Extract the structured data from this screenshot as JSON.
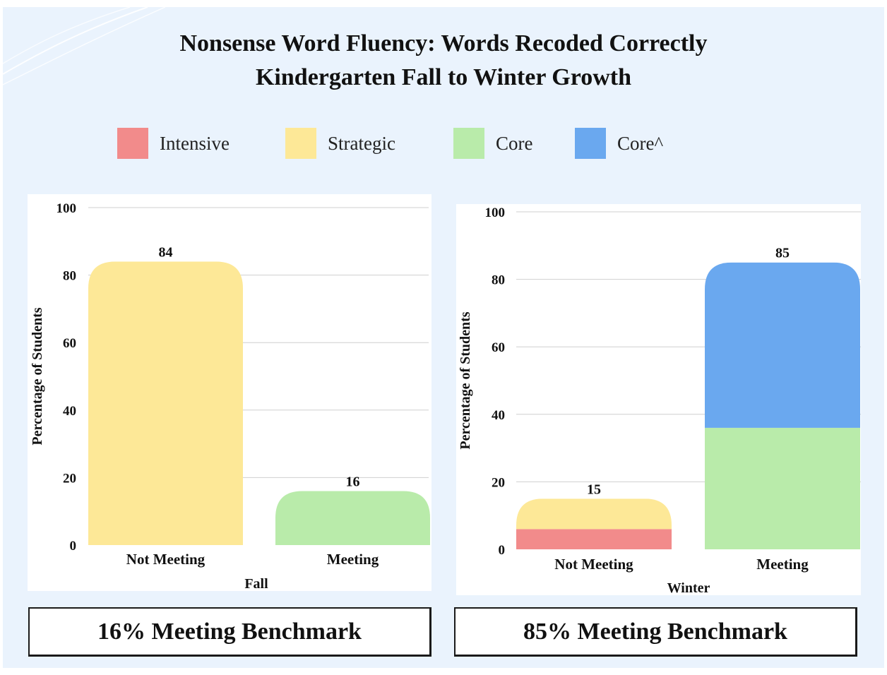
{
  "title_line1": "Nonsense Word Fluency: Words Recoded Correctly",
  "title_line2": "Kindergarten Fall to Winter Growth",
  "legend": [
    {
      "label": "Intensive",
      "color": "#f28b8b"
    },
    {
      "label": "Strategic",
      "color": "#fde897"
    },
    {
      "label": "Core",
      "color": "#b9ebaa"
    },
    {
      "label": "Core^",
      "color": "#6aa8ef"
    }
  ],
  "chart_data": [
    {
      "type": "bar",
      "stacked": true,
      "categories": [
        "Not Meeting",
        "Meeting"
      ],
      "series": [
        {
          "name": "Intensive",
          "color": "#f28b8b",
          "values": [
            0,
            0
          ]
        },
        {
          "name": "Strategic",
          "color": "#fde897",
          "values": [
            84,
            0
          ]
        },
        {
          "name": "Core",
          "color": "#b9ebaa",
          "values": [
            0,
            16
          ]
        },
        {
          "name": "Core^",
          "color": "#6aa8ef",
          "values": [
            0,
            0
          ]
        }
      ],
      "totals": [
        84,
        16
      ],
      "xlabel": "Fall",
      "ylabel": "Percentage of Students",
      "ylim": [
        0,
        100
      ],
      "yticks": [
        0,
        20,
        40,
        60,
        80,
        100
      ],
      "grid": true
    },
    {
      "type": "bar",
      "stacked": true,
      "categories": [
        "Not Meeting",
        "Meeting"
      ],
      "series": [
        {
          "name": "Intensive",
          "color": "#f28b8b",
          "values": [
            6,
            0
          ]
        },
        {
          "name": "Strategic",
          "color": "#fde897",
          "values": [
            9,
            0
          ]
        },
        {
          "name": "Core",
          "color": "#b9ebaa",
          "values": [
            0,
            36
          ]
        },
        {
          "name": "Core^",
          "color": "#6aa8ef",
          "values": [
            0,
            49
          ]
        }
      ],
      "totals": [
        15,
        85
      ],
      "xlabel": "Winter",
      "ylabel": "Percentage of Students",
      "ylim": [
        0,
        100
      ],
      "yticks": [
        0,
        20,
        40,
        60,
        80,
        100
      ],
      "grid": true
    }
  ],
  "benchmarks": [
    {
      "text": "16% Meeting Benchmark"
    },
    {
      "text": "85% Meeting Benchmark"
    }
  ]
}
